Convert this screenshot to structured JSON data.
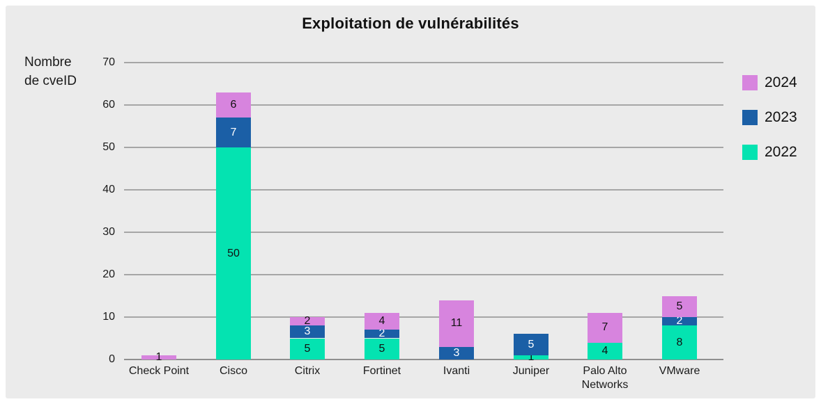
{
  "title": "Exploitation de vulnérabilités",
  "panel_background": "#ebebeb",
  "y_axis": {
    "unit_label_line1": "Nombre",
    "unit_label_line2": "de cveID",
    "ticks": [
      0,
      10,
      20,
      30,
      40,
      50,
      60,
      70
    ]
  },
  "legend": {
    "position": "right",
    "items": [
      {
        "label": "2024",
        "color": "#d784de"
      },
      {
        "label": "2023",
        "color": "#1b5fa6"
      },
      {
        "label": "2022",
        "color": "#04e3b1"
      }
    ]
  },
  "chart_data": {
    "type": "bar",
    "stacked": true,
    "title": "Exploitation de vulnérabilités",
    "xlabel": "",
    "ylabel": "Nombre de cveID",
    "ylim": [
      0,
      70
    ],
    "grid": true,
    "gridline_color": "#a6a6a6",
    "legend_position": "right",
    "categories": [
      "Check Point",
      "Cisco",
      "Citrix",
      "Fortinet",
      "Ivanti",
      "Juniper",
      "Palo Alto Networks",
      "VMware"
    ],
    "series": [
      {
        "name": "2022",
        "color": "#04e3b1",
        "label_color": "#111111",
        "values": [
          0,
          50,
          5,
          5,
          0,
          1,
          4,
          8
        ]
      },
      {
        "name": "2023",
        "color": "#1b5fa6",
        "label_color": "#ffffff",
        "values": [
          0,
          7,
          3,
          2,
          3,
          5,
          0,
          2
        ]
      },
      {
        "name": "2024",
        "color": "#d784de",
        "label_color": "#111111",
        "values": [
          1,
          6,
          2,
          4,
          11,
          0,
          7,
          5
        ]
      }
    ],
    "totals": [
      1,
      63,
      10,
      11,
      14,
      6,
      11,
      15
    ]
  }
}
